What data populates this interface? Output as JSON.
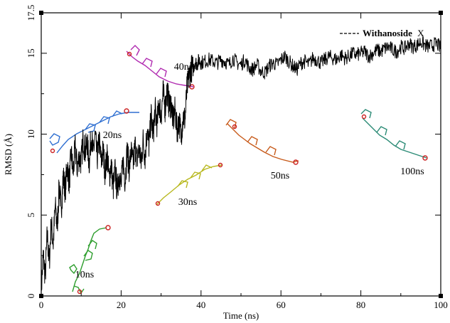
{
  "chart_data": {
    "type": "line",
    "title": "",
    "xlabel": "Time (ns)",
    "ylabel": "RMSD (Å)",
    "xlim": [
      0,
      100
    ],
    "ylim": [
      0,
      17.5
    ],
    "x_ticks": [
      0,
      20,
      40,
      60,
      80,
      100
    ],
    "y_ticks": [
      0,
      5,
      10,
      15,
      17.5
    ],
    "x_tick_labels": [
      "0",
      "20",
      "40",
      "60",
      "80",
      "100"
    ],
    "y_tick_labels": [
      "0",
      "5",
      "10",
      "15",
      "17.5"
    ],
    "grid": false,
    "legend": {
      "placement": "top-right",
      "bold_part": "Withanoside",
      "plain_part": "X",
      "line_style": "dashed",
      "color": "#000000"
    },
    "series": [
      {
        "name": "Withanoside X",
        "color": "#000000",
        "x": [
          0,
          0.5,
          1,
          1.5,
          2,
          2.5,
          3,
          3.5,
          4,
          4.5,
          5,
          5.5,
          6,
          6.5,
          7,
          7.5,
          8,
          8.5,
          9,
          9.5,
          10,
          10.5,
          11,
          11.5,
          12,
          12.5,
          13,
          13.5,
          14,
          14.5,
          15,
          15.5,
          16,
          16.5,
          17,
          17.5,
          18,
          18.5,
          19,
          19.5,
          20,
          20.5,
          21,
          21.5,
          22,
          22.5,
          23,
          23.5,
          24,
          24.5,
          25,
          25.5,
          26,
          26.5,
          27,
          27.5,
          28,
          28.5,
          29,
          29.5,
          30,
          30.5,
          31,
          31.5,
          32,
          32.5,
          33,
          33.5,
          34,
          34.5,
          35,
          35.5,
          36,
          36.5,
          37,
          37.5,
          38,
          38.5,
          39,
          39.5,
          40,
          41,
          42,
          43,
          44,
          45,
          46,
          47,
          48,
          49,
          50,
          51,
          52,
          53,
          54,
          55,
          56,
          57,
          58,
          59,
          60,
          61,
          62,
          63,
          64,
          65,
          66,
          67,
          68,
          69,
          70,
          71,
          72,
          73,
          74,
          75,
          76,
          77,
          78,
          79,
          80,
          81,
          82,
          83,
          84,
          85,
          86,
          87,
          88,
          89,
          90,
          91,
          92,
          93,
          94,
          95,
          96,
          97,
          98,
          99,
          100
        ],
        "y": [
          0.3,
          2.5,
          1.2,
          3.8,
          2.0,
          4.5,
          3.2,
          5.6,
          4.2,
          6.8,
          5.3,
          7.4,
          6.5,
          8.1,
          7.0,
          8.8,
          7.6,
          9.2,
          7.9,
          8.6,
          8.3,
          9.7,
          8.9,
          9.5,
          8.2,
          10.0,
          8.8,
          9.9,
          8.5,
          9.6,
          8.3,
          9.0,
          7.6,
          8.8,
          7.2,
          8.2,
          6.6,
          7.8,
          6.5,
          7.6,
          6.8,
          8.3,
          7.1,
          9.0,
          7.9,
          8.9,
          8.1,
          9.3,
          8.4,
          9.1,
          8.2,
          9.6,
          8.6,
          10.3,
          9.2,
          11.2,
          9.9,
          11.5,
          10.6,
          12.0,
          11.1,
          12.6,
          11.6,
          12.8,
          11.8,
          11.9,
          10.8,
          11.5,
          10.2,
          10.9,
          9.9,
          11.1,
          10.9,
          12.9,
          13.5,
          14.1,
          14.0,
          14.5,
          14.3,
          14.6,
          14.4,
          14.5,
          14.6,
          14.5,
          14.4,
          14.6,
          14.5,
          14.3,
          14.7,
          14.4,
          14.3,
          14.6,
          14.1,
          14.0,
          14.3,
          13.9,
          13.8,
          14.2,
          14.4,
          14.3,
          14.6,
          14.8,
          14.5,
          14.2,
          14.0,
          14.4,
          14.5,
          14.3,
          14.7,
          14.6,
          14.4,
          14.6,
          14.8,
          14.7,
          14.6,
          14.9,
          14.7,
          14.8,
          15.0,
          14.9,
          15.0,
          15.1,
          14.8,
          15.0,
          15.2,
          15.1,
          15.3,
          15.4,
          15.2,
          15.1,
          15.4,
          15.3,
          15.6,
          15.4,
          15.5,
          15.7,
          15.5,
          15.4,
          15.5,
          15.6,
          15.3
        ]
      }
    ],
    "annotations": [
      {
        "text": "10ns",
        "x": 11.5,
        "y": 1.0,
        "color": "#2e9e2e"
      },
      {
        "text": "20ns",
        "x": 17.0,
        "y": 7.0,
        "color": "#2f6fd1"
      },
      {
        "text": "30ns",
        "x": 72.0,
        "y": 4.2,
        "color": "#b8b81e"
      },
      {
        "text": "40ns",
        "x": 35.5,
        "y": 16.9,
        "color": "#b02ab0"
      },
      {
        "text": "50ns",
        "x": 58.0,
        "y": 10.5,
        "color": "#c75a1a"
      },
      {
        "text": "100ns",
        "x": 91.0,
        "y": 10.5,
        "color": "#2a8a75"
      }
    ]
  }
}
